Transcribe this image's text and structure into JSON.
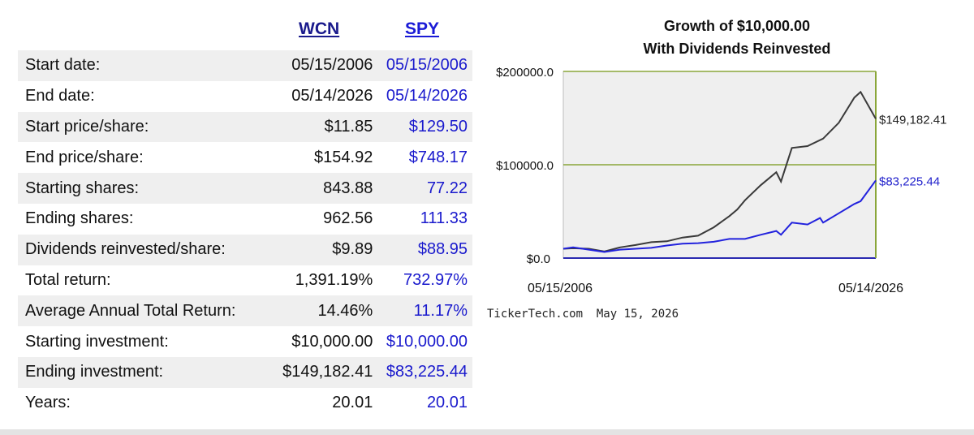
{
  "table": {
    "headers": {
      "wcn": "WCN",
      "spy": "SPY"
    },
    "rows": [
      {
        "label": "Start date:",
        "wcn": "05/15/2006",
        "spy": "05/15/2006"
      },
      {
        "label": "End date:",
        "wcn": "05/14/2026",
        "spy": "05/14/2026"
      },
      {
        "label": "Start price/share:",
        "wcn": "$11.85",
        "spy": "$129.50"
      },
      {
        "label": "End price/share:",
        "wcn": "$154.92",
        "spy": "$748.17"
      },
      {
        "label": "Starting shares:",
        "wcn": "843.88",
        "spy": "77.22"
      },
      {
        "label": "Ending shares:",
        "wcn": "962.56",
        "spy": "111.33"
      },
      {
        "label": "Dividends reinvested/share:",
        "wcn": "$9.89",
        "spy": "$88.95"
      },
      {
        "label": "Total return:",
        "wcn": "1,391.19%",
        "spy": "732.97%"
      },
      {
        "label": "Average Annual Total Return:",
        "wcn": "14.46%",
        "spy": "11.17%"
      },
      {
        "label": "Starting investment:",
        "wcn": "$10,000.00",
        "spy": "$10,000.00"
      },
      {
        "label": "Ending investment:",
        "wcn": "$149,182.41",
        "spy": "$83,225.44"
      },
      {
        "label": "Years:",
        "wcn": "20.01",
        "spy": "20.01"
      }
    ]
  },
  "chart_data": {
    "type": "line",
    "title_line1": "Growth of $10,000.00",
    "title_line2": "With Dividends Reinvested",
    "y_ticks": [
      "$200000.0",
      "$100000.0",
      "$0.0"
    ],
    "y_tick_values": [
      200000,
      100000,
      0
    ],
    "ylim": [
      0,
      200000
    ],
    "x_tick_labels": [
      "05/15/2006",
      "05/14/2026"
    ],
    "grid": true,
    "footer": "TickerTech.com  May 15, 2026",
    "colors": {
      "wcn": "#3a3a3a",
      "spy": "#2222dd",
      "grid": "#8aa63a",
      "plot_bg": "#efefef"
    },
    "series": [
      {
        "name": "WCN",
        "end_label": "$149,182.41",
        "x": [
          2006.37,
          2007,
          2008,
          2009,
          2010,
          2011,
          2012,
          2013,
          2014,
          2015,
          2016,
          2017,
          2017.5,
          2018,
          2019,
          2020,
          2020.3,
          2021,
          2022,
          2023,
          2024,
          2025,
          2025.4,
          2026.37
        ],
        "values": [
          10000,
          10500,
          10000,
          7000,
          11500,
          14000,
          17000,
          18000,
          22000,
          24000,
          33000,
          45000,
          52000,
          62000,
          78000,
          92000,
          82000,
          118000,
          120000,
          128000,
          145000,
          172000,
          178000,
          149182.41
        ]
      },
      {
        "name": "SPY",
        "end_label": "$83,225.44",
        "x": [
          2006.37,
          2007,
          2008,
          2009,
          2010,
          2011,
          2012,
          2013,
          2014,
          2015,
          2016,
          2017,
          2018,
          2019,
          2020,
          2020.3,
          2021,
          2022,
          2022.8,
          2023,
          2024,
          2025,
          2025.4,
          2026.37
        ],
        "values": [
          10000,
          11500,
          9000,
          6500,
          9000,
          10000,
          11000,
          13500,
          15500,
          16000,
          17500,
          20500,
          20500,
          25000,
          29000,
          25000,
          38000,
          36000,
          43000,
          38000,
          48000,
          58000,
          61000,
          83225.44
        ]
      }
    ]
  }
}
